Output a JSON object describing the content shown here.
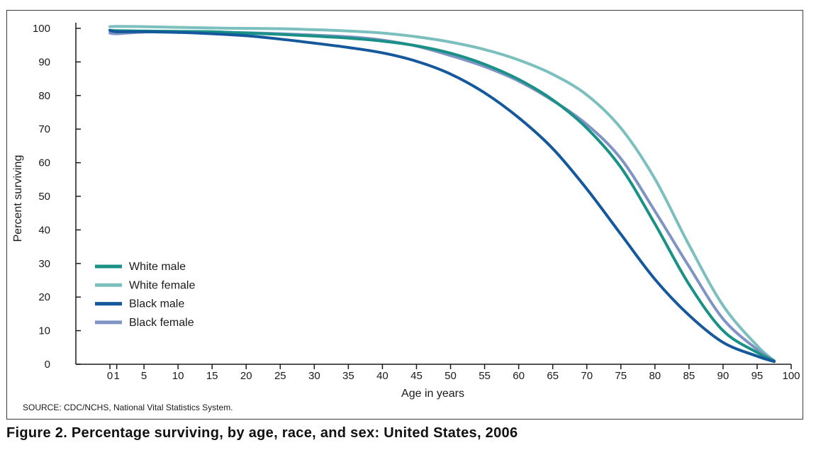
{
  "caption": "Figure 2. Percentage surviving, by age, race, and sex: United States, 2006",
  "source": "SOURCE: CDC/NCHS, National Vital Statistics System.",
  "chart_data": {
    "type": "line",
    "title": "",
    "xlabel": "Age in years",
    "ylabel": "Percent surviving",
    "xlim": [
      -5,
      100
    ],
    "ylim": [
      0,
      100
    ],
    "x_ticks": [
      0,
      1,
      5,
      10,
      15,
      20,
      25,
      30,
      35,
      40,
      45,
      50,
      55,
      60,
      65,
      70,
      75,
      80,
      85,
      90,
      95,
      100
    ],
    "x_tick_labels": [
      "0",
      "1",
      "5",
      "10",
      "15",
      "20",
      "25",
      "30",
      "35",
      "40",
      "45",
      "50",
      "55",
      "60",
      "65",
      "70",
      "75",
      "80",
      "85",
      "90",
      "95",
      "100"
    ],
    "y_ticks": [
      0,
      10,
      20,
      30,
      40,
      50,
      60,
      70,
      80,
      90,
      100
    ],
    "grid": false,
    "legend_position": "bottom-left",
    "series": [
      {
        "name": "White male",
        "color": "#1a9186",
        "x": [
          0,
          1,
          5,
          10,
          15,
          20,
          25,
          30,
          35,
          40,
          45,
          50,
          55,
          60,
          65,
          70,
          75,
          80,
          85,
          90,
          95,
          97.5
        ],
        "y": [
          99.4,
          99.3,
          99.2,
          99.1,
          99.0,
          98.6,
          98.2,
          97.7,
          97.1,
          96.2,
          94.8,
          92.6,
          89.3,
          84.8,
          78.7,
          70.3,
          58.6,
          41.8,
          23.8,
          10.0,
          3.5,
          1.0
        ]
      },
      {
        "name": "White female",
        "color": "#7bbfbe",
        "x": [
          0,
          1,
          5,
          10,
          15,
          20,
          25,
          30,
          35,
          40,
          45,
          50,
          55,
          60,
          65,
          70,
          75,
          80,
          85,
          90,
          95,
          97.5
        ],
        "y": [
          100.5,
          100.6,
          100.5,
          100.3,
          100.1,
          100.0,
          99.9,
          99.6,
          99.2,
          98.6,
          97.5,
          95.9,
          93.7,
          90.6,
          86.3,
          80.2,
          70.3,
          55.2,
          35.5,
          17.5,
          5.5,
          1.0
        ]
      },
      {
        "name": "Black male",
        "color": "#16589c",
        "x": [
          0,
          1,
          5,
          10,
          15,
          20,
          25,
          30,
          35,
          40,
          45,
          50,
          55,
          60,
          65,
          70,
          75,
          80,
          85,
          90,
          95,
          97.5
        ],
        "y": [
          99.4,
          99.0,
          99.0,
          98.8,
          98.4,
          97.8,
          96.8,
          95.6,
          94.3,
          92.7,
          90.2,
          86.4,
          80.8,
          73.4,
          64.2,
          52.2,
          38.7,
          25.3,
          14.6,
          6.5,
          2.4,
          0.8
        ]
      },
      {
        "name": "Black female",
        "color": "#8093c5",
        "x": [
          0,
          1,
          5,
          10,
          15,
          20,
          25,
          30,
          35,
          40,
          45,
          50,
          55,
          60,
          65,
          70,
          75,
          80,
          85,
          90,
          95,
          97.5
        ],
        "y": [
          98.6,
          98.4,
          98.9,
          98.9,
          98.8,
          98.7,
          98.4,
          98.0,
          97.5,
          96.5,
          94.7,
          91.9,
          88.6,
          84.3,
          78.5,
          71.4,
          61.2,
          45.6,
          29.1,
          13.5,
          4.4,
          1.0
        ]
      }
    ]
  }
}
